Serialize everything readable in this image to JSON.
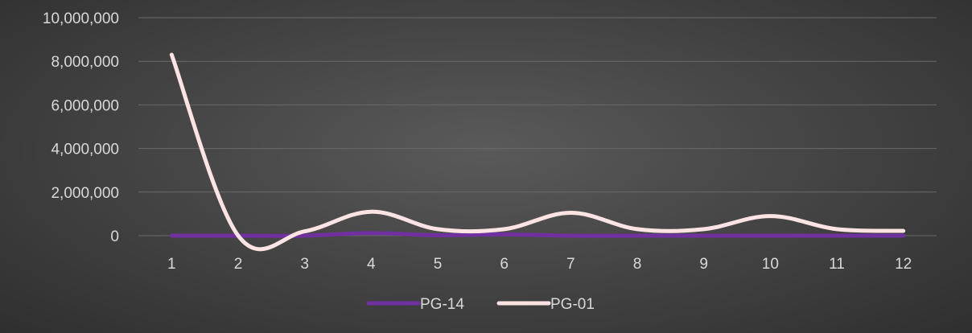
{
  "chart_data": {
    "type": "line",
    "title": "",
    "xlabel": "",
    "ylabel": "",
    "categories": [
      "1",
      "2",
      "3",
      "4",
      "5",
      "6",
      "7",
      "8",
      "9",
      "10",
      "11",
      "12"
    ],
    "y_ticks": [
      "0",
      "2,000,000",
      "4,000,000",
      "6,000,000",
      "8,000,000",
      "10,000,000"
    ],
    "ylim": [
      0,
      10000000
    ],
    "smooth": true,
    "grid": true,
    "legend_position": "bottom",
    "series": [
      {
        "name": "PG-14",
        "color": "#7030a0",
        "values": [
          0,
          0,
          0,
          120000,
          20000,
          60000,
          0,
          0,
          0,
          0,
          0,
          0
        ]
      },
      {
        "name": "PG-01",
        "color": "#fce4e4",
        "values": [
          8300000,
          0,
          200000,
          1100000,
          300000,
          300000,
          1050000,
          300000,
          300000,
          900000,
          300000,
          220000
        ]
      }
    ]
  }
}
